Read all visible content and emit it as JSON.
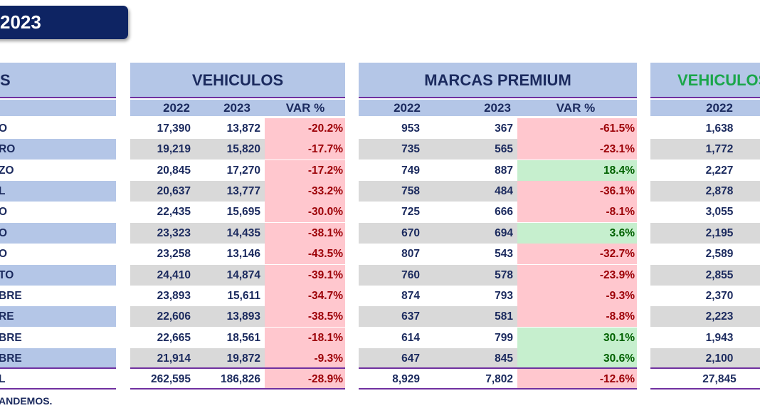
{
  "title": "2023",
  "months": {
    "header": "S",
    "rows": [
      "O",
      "RO",
      "ZO",
      "L",
      "O",
      "O",
      "O",
      "TO",
      "BRE",
      "RE",
      "BRE",
      "BRE"
    ],
    "total": "L"
  },
  "vehiculos": {
    "title": "VEHICULOS",
    "col_2022": "2022",
    "col_2023": "2023",
    "col_var": "VAR %",
    "rows": [
      [
        "17,390",
        "13,872",
        "-20.2%"
      ],
      [
        "19,219",
        "15,820",
        "-17.7%"
      ],
      [
        "20,845",
        "17,270",
        "-17.2%"
      ],
      [
        "20,637",
        "13,777",
        "-33.2%"
      ],
      [
        "22,435",
        "15,695",
        "-30.0%"
      ],
      [
        "23,323",
        "14,435",
        "-38.1%"
      ],
      [
        "23,258",
        "13,146",
        "-43.5%"
      ],
      [
        "24,410",
        "14,874",
        "-39.1%"
      ],
      [
        "23,893",
        "15,611",
        "-34.7%"
      ],
      [
        "22,606",
        "13,893",
        "-38.5%"
      ],
      [
        "22,665",
        "18,561",
        "-18.1%"
      ],
      [
        "21,914",
        "19,872",
        "-9.3%"
      ]
    ],
    "total": [
      "262,595",
      "186,826",
      "-28.9%"
    ]
  },
  "premium": {
    "title": "MARCAS PREMIUM",
    "col_2022": "2022",
    "col_2023": "2023",
    "col_var": "VAR %",
    "rows": [
      [
        "953",
        "367",
        "-61.5%"
      ],
      [
        "735",
        "565",
        "-23.1%"
      ],
      [
        "749",
        "887",
        "18.4%"
      ],
      [
        "758",
        "484",
        "-36.1%"
      ],
      [
        "725",
        "666",
        "-8.1%"
      ],
      [
        "670",
        "694",
        "3.6%"
      ],
      [
        "807",
        "543",
        "-32.7%"
      ],
      [
        "760",
        "578",
        "-23.9%"
      ],
      [
        "874",
        "793",
        "-9.3%"
      ],
      [
        "637",
        "581",
        "-8.8%"
      ],
      [
        "614",
        "799",
        "30.1%"
      ],
      [
        "647",
        "845",
        "30.6%"
      ]
    ],
    "total": [
      "8,929",
      "7,802",
      "-12.6%"
    ]
  },
  "third": {
    "title": "VEHICULOS",
    "col_2022": "2022",
    "rows": [
      "1,638",
      "1,772",
      "2,227",
      "2,878",
      "3,055",
      "2,195",
      "2,589",
      "2,855",
      "2,370",
      "2,223",
      "1,943",
      "2,100"
    ],
    "total": "27,845",
    "title_color": "#1aa64a"
  },
  "footnote": "ANDEMOS."
}
